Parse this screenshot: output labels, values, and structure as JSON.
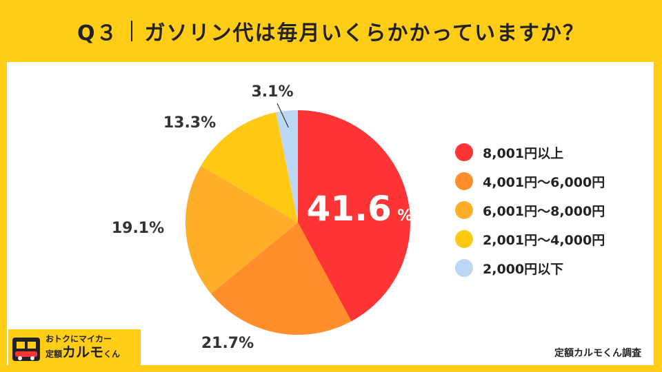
{
  "header": {
    "question_no": "Q３",
    "question": "ガソリン代は毎月いくらかかっていますか？"
  },
  "chart_data": {
    "type": "pie",
    "start_angle": "12 o'clock",
    "direction": "clockwise",
    "slices": [
      {
        "label": "8,001円以上",
        "value": 41.6,
        "display": "41.6",
        "color": "#FF3535",
        "highlight": true
      },
      {
        "label": "4,001円〜6,000円",
        "value": 21.7,
        "display": "21.7%",
        "color": "#FF8E2B"
      },
      {
        "label": "6,001円〜8,000円",
        "value": 19.1,
        "display": "19.1%",
        "color": "#FFAE2A"
      },
      {
        "label": "2,001円〜4,000円",
        "value": 13.3,
        "display": "13.3%",
        "color": "#FFC812"
      },
      {
        "label": "2,000円以下",
        "value": 3.1,
        "display": "3.1%",
        "color": "#BDD7F7"
      }
    ],
    "highlight_unit": "%"
  },
  "footer": {
    "source": "定額カルモくん調査",
    "logo_tagline": "おトクにマイカー",
    "logo_prefix": "定額",
    "logo_brand": "カルモ",
    "logo_suffix": "くん"
  }
}
